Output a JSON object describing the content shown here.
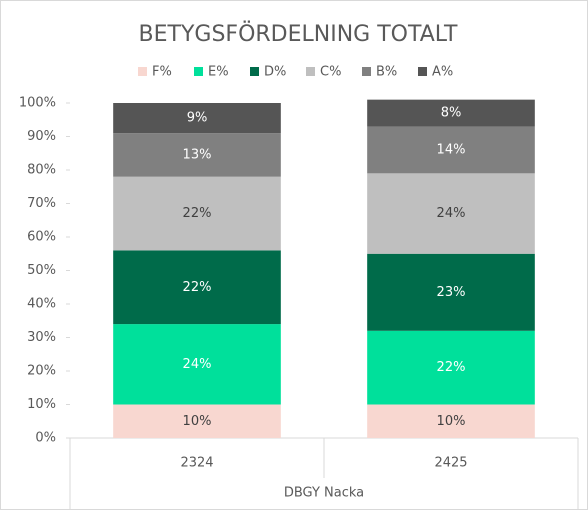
{
  "chart_data": {
    "type": "stacked_bar_100",
    "title": "BETYGSFÖRDELNING TOTALT",
    "categories": [
      "2324",
      "2425"
    ],
    "group_label": "DBGY Nacka",
    "series": [
      {
        "name": "F%",
        "color": "#f8d7d0",
        "values": [
          10,
          10
        ],
        "value_labels": [
          "10%",
          "10%"
        ]
      },
      {
        "name": "E%",
        "color": "#00e09b",
        "values": [
          24,
          22
        ],
        "value_labels": [
          "24%",
          "22%"
        ]
      },
      {
        "name": "D%",
        "color": "#006b4a",
        "values": [
          22,
          23
        ],
        "value_labels": [
          "22%",
          "23%"
        ]
      },
      {
        "name": "C%",
        "color": "#bfbfbf",
        "values": [
          22,
          24
        ],
        "value_labels": [
          "22%",
          "24%"
        ]
      },
      {
        "name": "B%",
        "color": "#808080",
        "values": [
          13,
          14
        ],
        "value_labels": [
          "13%",
          "14%"
        ]
      },
      {
        "name": "A%",
        "color": "#555555",
        "values": [
          9,
          8
        ],
        "value_labels": [
          "9%",
          "8%"
        ]
      }
    ],
    "ylim": [
      0,
      100
    ],
    "yticks": [
      {
        "value": 0,
        "label": "0%"
      },
      {
        "value": 10,
        "label": "10%"
      },
      {
        "value": 20,
        "label": "20%"
      },
      {
        "value": 30,
        "label": "30%"
      },
      {
        "value": 40,
        "label": "40%"
      },
      {
        "value": 50,
        "label": "50%"
      },
      {
        "value": 60,
        "label": "60%"
      },
      {
        "value": 70,
        "label": "70%"
      },
      {
        "value": 80,
        "label": "80%"
      },
      {
        "value": 90,
        "label": "90%"
      },
      {
        "value": 100,
        "label": "100%"
      }
    ],
    "legend": "top"
  }
}
